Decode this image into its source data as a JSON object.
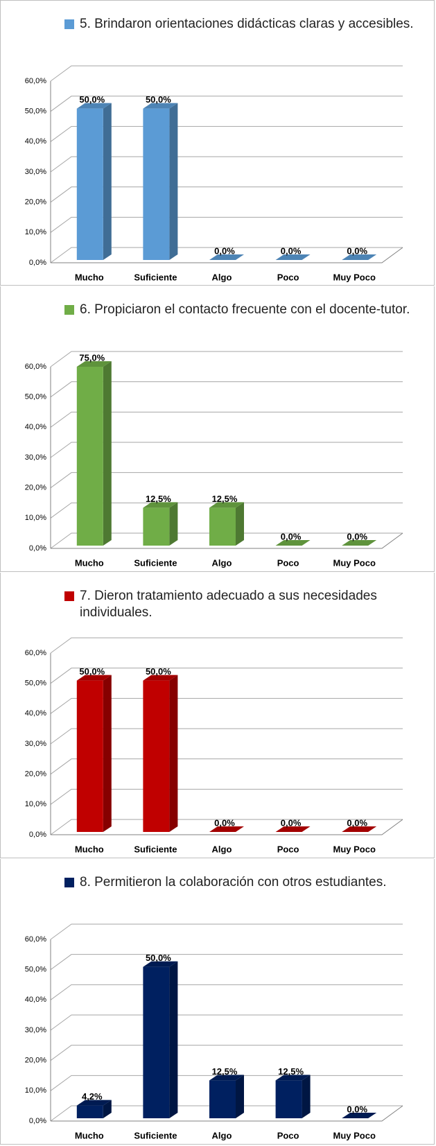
{
  "chart_data": [
    {
      "type": "bar",
      "title": "5. Brindaron orientaciones didácticas claras y accesibles.",
      "categories": [
        "Mucho",
        "Suficiente",
        "Algo",
        "Poco",
        "Muy Poco"
      ],
      "values": [
        50,
        50,
        0,
        0,
        0
      ],
      "value_labels": [
        "50,0%",
        "50,0%",
        "0,0%",
        "0,0%",
        "0,0%"
      ],
      "color": "#5b9bd5",
      "ylim": [
        0,
        60
      ],
      "yticks": [
        {
          "value": 0,
          "label": "0,0%"
        },
        {
          "value": 10,
          "label": "10,0%"
        },
        {
          "value": 20,
          "label": "20,0%"
        },
        {
          "value": 30,
          "label": "30,0%"
        },
        {
          "value": 40,
          "label": "40,0%"
        },
        {
          "value": 50,
          "label": "50,0%"
        },
        {
          "value": 60,
          "label": "60,0%"
        }
      ]
    },
    {
      "type": "bar",
      "title": "6. Propiciaron el contacto frecuente con el docente-tutor.",
      "categories": [
        "Mucho",
        "Suficiente",
        "Algo",
        "Poco",
        "Muy Poco"
      ],
      "values": [
        75,
        12.5,
        12.5,
        0,
        0
      ],
      "value_labels": [
        "75,0%",
        "12,5%",
        "12,5%",
        "0,0%",
        "0,0%"
      ],
      "color": "#70ad47",
      "ylim": [
        0,
        60
      ],
      "yticks": [
        {
          "value": 0,
          "label": "0,0%"
        },
        {
          "value": 10,
          "label": "10,0%"
        },
        {
          "value": 20,
          "label": "20,0%"
        },
        {
          "value": 30,
          "label": "30,0%"
        },
        {
          "value": 40,
          "label": "40,0%"
        },
        {
          "value": 50,
          "label": "50,0%"
        },
        {
          "value": 60,
          "label": "60,0%"
        }
      ]
    },
    {
      "type": "bar",
      "title": "7. Dieron tratamiento adecuado a sus necesidades individuales.",
      "categories": [
        "Mucho",
        "Suficiente",
        "Algo",
        "Poco",
        "Muy Poco"
      ],
      "values": [
        50,
        50,
        0,
        0,
        0
      ],
      "value_labels": [
        "50,0%",
        "50,0%",
        "0,0%",
        "0,0%",
        "0,0%"
      ],
      "color": "#c00000",
      "ylim": [
        0,
        60
      ],
      "yticks": [
        {
          "value": 0,
          "label": "0,0%"
        },
        {
          "value": 10,
          "label": "10,0%"
        },
        {
          "value": 20,
          "label": "20,0%"
        },
        {
          "value": 30,
          "label": "30,0%"
        },
        {
          "value": 40,
          "label": "40,0%"
        },
        {
          "value": 50,
          "label": "50,0%"
        },
        {
          "value": 60,
          "label": "60,0%"
        }
      ]
    },
    {
      "type": "bar",
      "title": "8. Permitieron la colaboración con otros estudiantes.",
      "categories": [
        "Mucho",
        "Suficiente",
        "Algo",
        "Poco",
        "Muy Poco"
      ],
      "values": [
        4.2,
        50,
        12.5,
        12.5,
        0
      ],
      "value_labels": [
        "4,2%",
        "50,0%",
        "12,5%",
        "12,5%",
        "0,0%"
      ],
      "color": "#002060",
      "ylim": [
        0,
        60
      ],
      "yticks": [
        {
          "value": 0,
          "label": "0,0%"
        },
        {
          "value": 10,
          "label": "10,0%"
        },
        {
          "value": 20,
          "label": "20,0%"
        },
        {
          "value": 30,
          "label": "30,0%"
        },
        {
          "value": 40,
          "label": "40,0%"
        },
        {
          "value": 50,
          "label": "50,0%"
        },
        {
          "value": 60,
          "label": "60,0%"
        }
      ]
    }
  ]
}
